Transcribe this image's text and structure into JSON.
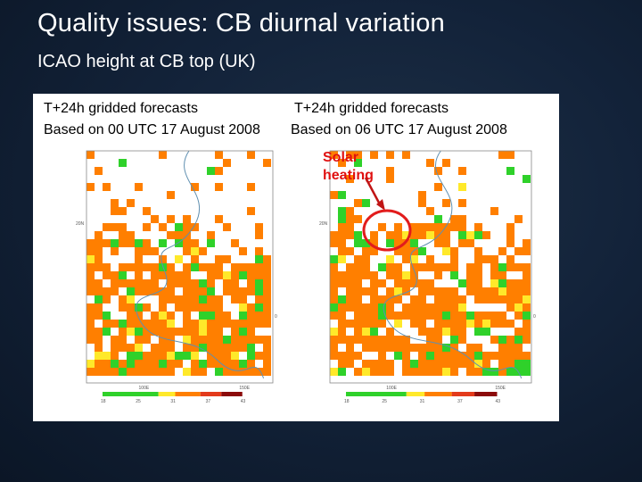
{
  "slide": {
    "title": "Quality issues: CB diurnal variation",
    "subtitle": "ICAO height at CB top (UK)"
  },
  "panels": [
    {
      "caption_line1": "T+24h gridded forecasts",
      "caption_line2": "Based on 00 UTC 17 August 2008",
      "x_ticks": [
        "100E",
        "150E"
      ],
      "y_ticks": [
        "20N",
        "0"
      ],
      "legend_ticks": [
        "18",
        "25",
        "31",
        "37",
        "43"
      ]
    },
    {
      "caption_line1": "T+24h gridded forecasts",
      "caption_line2": "Based on 06 UTC 17 August 2008",
      "x_ticks": [
        "100E",
        "150E"
      ],
      "y_ticks": [
        "20N",
        "0"
      ],
      "legend_ticks": [
        "18",
        "25",
        "31",
        "37",
        "43"
      ]
    }
  ],
  "annotation": {
    "line1": "Solar",
    "line2": "heating"
  },
  "colors": {
    "orange": "#ff7f00",
    "green": "#2fd12a",
    "yellow": "#ffe92a",
    "red": "#e33a1b",
    "dark_red": "#8b0a0a",
    "circle": "#e21c1c"
  }
}
